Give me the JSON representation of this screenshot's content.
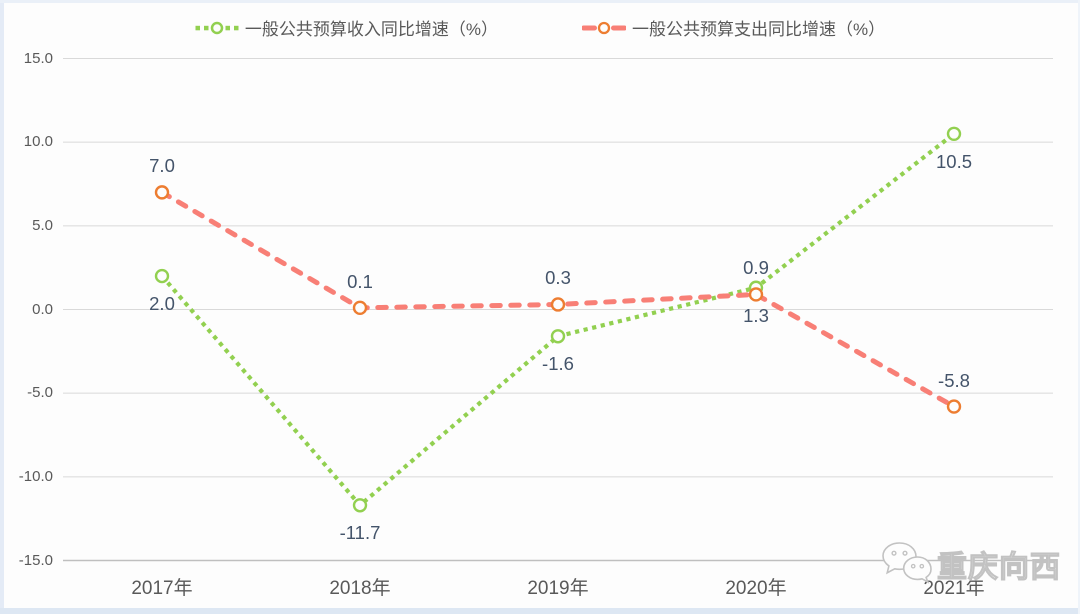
{
  "watermark": {
    "text": "重庆向西",
    "icon": "wechat-icon"
  },
  "chart_data": {
    "type": "line",
    "title": "",
    "categories": [
      "2017年",
      "2018年",
      "2019年",
      "2020年",
      "2021年"
    ],
    "series": [
      {
        "key": "revenue",
        "name": "一般公共预算收入同比增速（%）",
        "values": [
          2.0,
          -11.7,
          -1.6,
          1.3,
          10.5
        ],
        "labels": [
          "2.0",
          "-11.7",
          "-1.6",
          "1.3",
          "10.5"
        ],
        "color": "#92d050",
        "marker_color": "#92d050",
        "marker": "open-circle",
        "line_style": "dotted",
        "label_position": "below"
      },
      {
        "key": "expenditure",
        "name": "一般公共预算支出同比增速（%）",
        "values": [
          7.0,
          0.1,
          0.3,
          0.9,
          -5.8
        ],
        "labels": [
          "7.0",
          "0.1",
          "0.3",
          "0.9",
          "-5.8"
        ],
        "color": "#f87f76",
        "marker_color": "#ed7d31",
        "marker": "open-circle",
        "line_style": "dashed",
        "label_position": "above"
      }
    ],
    "y_axis": {
      "min": -15,
      "max": 15,
      "step": 5,
      "tick_labels": [
        "15.0",
        "10.0",
        "5.0",
        "0.0",
        "-5.0",
        "-10.0",
        "-15.0"
      ]
    },
    "x_axis": {
      "tick_labels": [
        "2017年",
        "2018年",
        "2019年",
        "2020年",
        "2021年"
      ]
    },
    "grid": true,
    "legend_position": "top",
    "colors": {
      "data_label": "#44546a",
      "axis_label": "#595959",
      "gridline": "#d9d9d9",
      "axis_line": "#bfbfbf",
      "marker_fill": "#fdfdfd"
    }
  }
}
